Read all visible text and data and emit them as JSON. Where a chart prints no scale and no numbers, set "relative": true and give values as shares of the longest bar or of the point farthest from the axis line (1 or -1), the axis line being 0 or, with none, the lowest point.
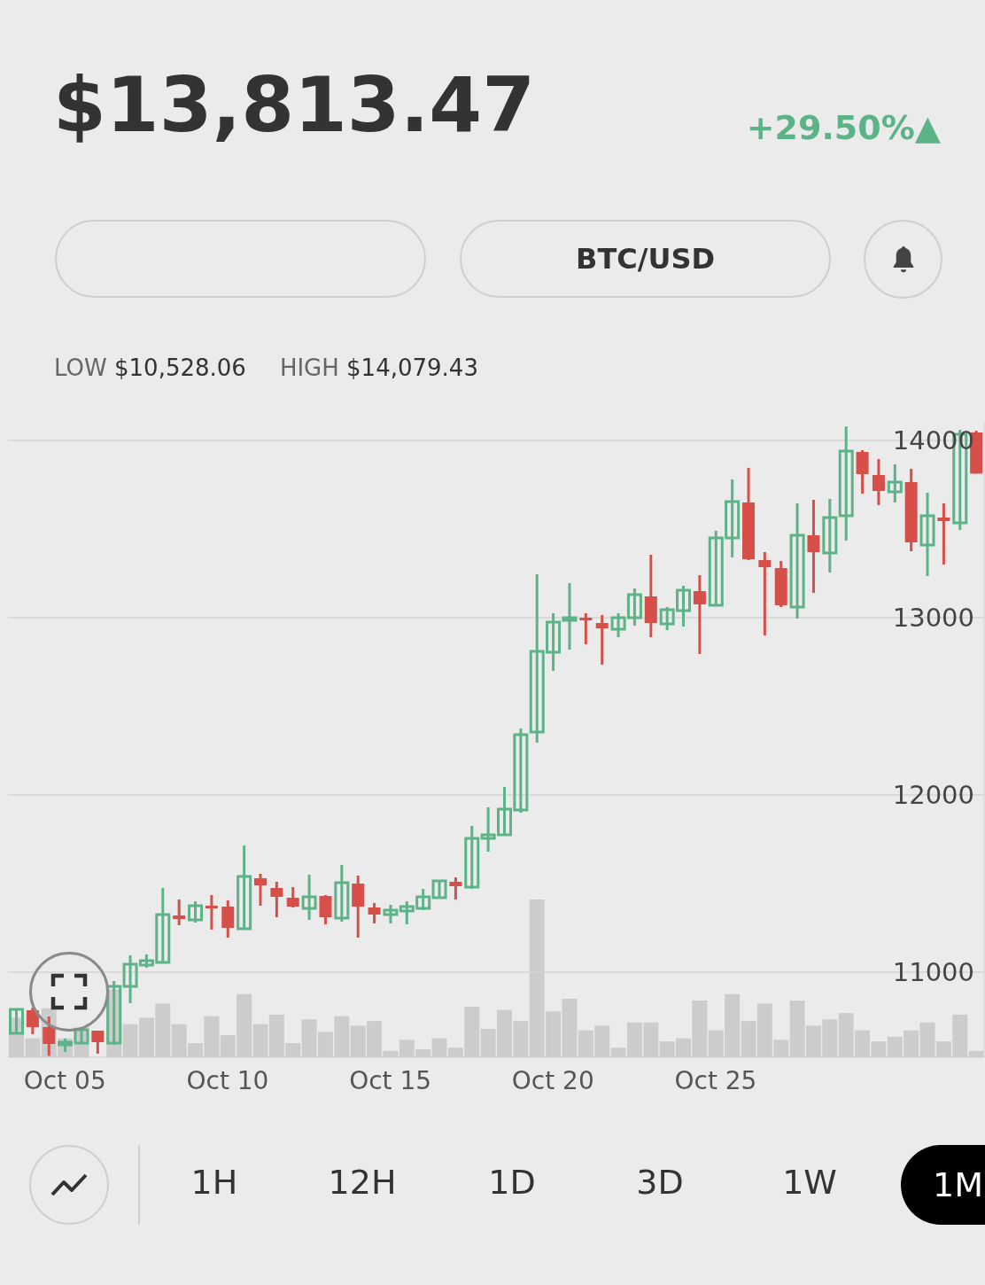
{
  "chart_data": [
    {
      "type": "candlestick",
      "title": "$13,813.47",
      "annotations": [
        "+29.50%▲",
        "BTC/USD",
        "LOW",
        "$10,528.06",
        "HIGH",
        "$14,079.43",
        "1H",
        "12H",
        "1D",
        "3D",
        "1W",
        "1M"
      ],
      "categories": [
        null,
        null,
        null,
        "Oct 05",
        null,
        null,
        null,
        null,
        null,
        null,
        null,
        null,
        null,
        "Oct 10",
        null,
        null,
        null,
        null,
        null,
        null,
        null,
        null,
        null,
        "Oct 15",
        null,
        null,
        null,
        null,
        null,
        null,
        null,
        null,
        null,
        "Oct 20",
        null,
        null,
        null,
        null,
        null,
        null,
        null,
        null,
        null,
        "Oct 25",
        null,
        null,
        null,
        null,
        null,
        null,
        null,
        null,
        null,
        null,
        null,
        null,
        null,
        null,
        null,
        null
      ],
      "ohlc": [
        [
          10655,
          10790,
          10655,
          10790
        ],
        [
          10785,
          10800,
          10650,
          10690
        ],
        [
          10690,
          10750,
          10528,
          10595
        ],
        [
          10600,
          10625,
          10550,
          10605
        ],
        [
          10600,
          10675,
          10600,
          10675
        ],
        [
          10670,
          10670,
          10540,
          10605
        ],
        [
          10600,
          10950,
          10590,
          10920
        ],
        [
          10920,
          11095,
          10825,
          11045
        ],
        [
          11040,
          11100,
          11025,
          11065
        ],
        [
          11055,
          11475,
          11055,
          11325
        ],
        [
          11320,
          11410,
          11265,
          11300
        ],
        [
          11295,
          11400,
          11280,
          11375
        ],
        [
          11375,
          11435,
          11240,
          11370
        ],
        [
          11370,
          11405,
          11195,
          11250
        ],
        [
          11245,
          11715,
          11245,
          11540
        ],
        [
          11530,
          11555,
          11375,
          11490
        ],
        [
          11475,
          11510,
          11310,
          11425
        ],
        [
          11420,
          11480,
          11365,
          11370
        ],
        [
          11360,
          11550,
          11295,
          11425
        ],
        [
          11430,
          11435,
          11270,
          11310
        ],
        [
          11305,
          11605,
          11285,
          11505
        ],
        [
          11500,
          11545,
          11195,
          11370
        ],
        [
          11365,
          11390,
          11275,
          11325
        ],
        [
          11325,
          11380,
          11275,
          11350
        ],
        [
          11345,
          11400,
          11270,
          11370
        ],
        [
          11360,
          11470,
          11350,
          11425
        ],
        [
          11420,
          11515,
          11415,
          11515
        ],
        [
          11510,
          11535,
          11410,
          11485
        ],
        [
          11480,
          11825,
          11470,
          11755
        ],
        [
          11755,
          11930,
          11680,
          11775
        ],
        [
          11775,
          12045,
          11770,
          11920
        ],
        [
          11915,
          12375,
          11900,
          12340
        ],
        [
          12355,
          13245,
          12295,
          12810
        ],
        [
          12805,
          13025,
          12700,
          12975
        ],
        [
          12990,
          13195,
          12820,
          13000
        ],
        [
          13000,
          13025,
          12850,
          12990
        ],
        [
          12970,
          13015,
          12735,
          12940
        ],
        [
          12935,
          13025,
          12890,
          13000
        ],
        [
          13000,
          13165,
          12955,
          13130
        ],
        [
          13120,
          13355,
          12890,
          12970
        ],
        [
          12965,
          13060,
          12930,
          13045
        ],
        [
          13040,
          13180,
          12950,
          13155
        ],
        [
          13150,
          13240,
          12795,
          13075
        ],
        [
          13070,
          13490,
          13070,
          13450
        ],
        [
          13450,
          13780,
          13340,
          13655
        ],
        [
          13650,
          13845,
          13325,
          13330
        ],
        [
          13325,
          13370,
          12900,
          13285
        ],
        [
          13280,
          13320,
          13060,
          13070
        ],
        [
          13060,
          13645,
          12995,
          13465
        ],
        [
          13465,
          13665,
          13140,
          13370
        ],
        [
          13365,
          13670,
          13255,
          13565
        ],
        [
          13575,
          14079,
          13435,
          13940
        ],
        [
          13935,
          13945,
          13700,
          13810
        ],
        [
          13805,
          13895,
          13635,
          13715
        ],
        [
          13710,
          13865,
          13650,
          13765
        ],
        [
          13765,
          13840,
          13375,
          13425
        ],
        [
          13410,
          13705,
          13235,
          13575
        ],
        [
          13565,
          13645,
          13300,
          13545
        ],
        [
          13535,
          14060,
          13495,
          14035
        ],
        [
          14045,
          14055,
          13813,
          13813
        ]
      ],
      "colors": [
        "#5cb388",
        "#d64f48",
        "#d64f48",
        "#5cb388",
        "#5cb388",
        "#d64f48",
        "#5cb388",
        "#5cb388",
        "#5cb388",
        "#5cb388",
        "#d64f48",
        "#5cb388",
        "#d64f48",
        "#d64f48",
        "#5cb388",
        "#d64f48",
        "#d64f48",
        "#d64f48",
        "#5cb388",
        "#d64f48",
        "#5cb388",
        "#d64f48",
        "#d64f48",
        "#5cb388",
        "#5cb388",
        "#5cb388",
        "#5cb388",
        "#d64f48",
        "#5cb388",
        "#5cb388",
        "#5cb388",
        "#5cb388",
        "#5cb388",
        "#5cb388",
        "#5cb388",
        "#d64f48",
        "#d64f48",
        "#5cb388",
        "#5cb388",
        "#d64f48",
        "#5cb388",
        "#5cb388",
        "#d64f48",
        "#5cb388",
        "#5cb388",
        "#d64f48",
        "#d64f48",
        "#d64f48",
        "#5cb388",
        "#d64f48",
        "#5cb388",
        "#5cb388",
        "#d64f48",
        "#d64f48",
        "#5cb388",
        "#d64f48",
        "#5cb388",
        "#d64f48",
        "#5cb388",
        "#d64f48"
      ],
      "ylim": [
        10520,
        14100
      ],
      "yticks": [
        11000,
        12000,
        13000,
        14000
      ],
      "grid": "y"
    },
    {
      "type": "bar",
      "relative": true,
      "color": "#cccccc",
      "values": [
        0.25,
        0.12,
        0.31,
        0.12,
        0.19,
        null,
        0.43,
        0.21,
        0.25,
        0.34,
        0.21,
        0.09,
        0.26,
        0.14,
        0.4,
        0.21,
        0.27,
        0.09,
        0.24,
        0.16,
        0.26,
        0.2,
        0.23,
        0.04,
        0.11,
        0.05,
        0.12,
        0.06,
        0.32,
        0.18,
        0.3,
        0.23,
        1,
        0.29,
        0.37,
        0.17,
        0.2,
        0.06,
        0.22,
        0.22,
        0.1,
        0.12,
        0.36,
        0.17,
        0.4,
        0.23,
        0.34,
        0.11,
        0.36,
        0.2,
        0.24,
        0.28,
        0.17,
        0.1,
        0.13,
        0.17,
        0.22,
        0.1,
        0.27,
        0.04
      ]
    }
  ]
}
